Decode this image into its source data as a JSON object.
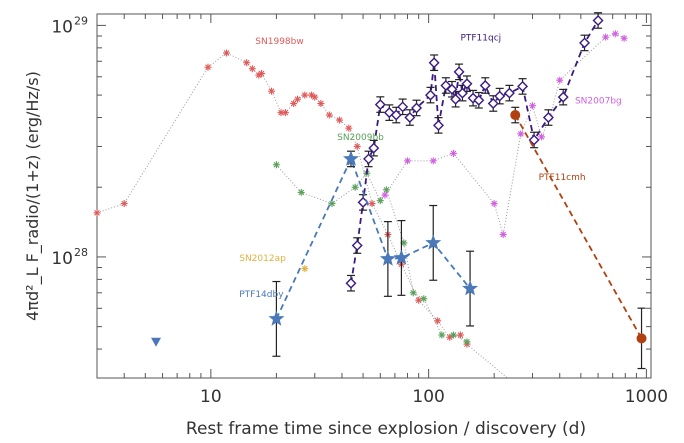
{
  "chart_data": {
    "type": "scatter",
    "xlabel": "Rest frame time since explosion / discovery (d)",
    "ylabel": "4πd²_L F_radio/(1+z) (erg/Hz/s)",
    "xscale": "log",
    "yscale": "log",
    "xlim": [
      3,
      1050
    ],
    "ylim": [
      3e+27,
      1.12e+29
    ],
    "x_ticks": [
      {
        "value": 10,
        "label": "10"
      },
      {
        "value": 100,
        "label": "100"
      },
      {
        "value": 1000,
        "label": "1000"
      }
    ],
    "y_ticks": [
      {
        "value": 1e+28,
        "label_base": "10",
        "label_exp": "28"
      },
      {
        "value": 1e+29,
        "label_base": "10",
        "label_exp": "29"
      }
    ],
    "grid": false,
    "series": [
      {
        "name": "SN1998bw",
        "color": "#e05a5a",
        "marker": "asterisk",
        "line": "dotted",
        "label_at": [
          16,
          8.3e+28
        ],
        "x": [
          3.0,
          4.0,
          9.7,
          11.8,
          14.6,
          15.5,
          16.6,
          17.1,
          19.0,
          21.0,
          22.0,
          24.0,
          25.0,
          27.0,
          29.0,
          30.0,
          32.0,
          35.0,
          39.0,
          43.0,
          47.0,
          55.0,
          65.0,
          75.0,
          90.0,
          110.0,
          125.0,
          140.0,
          150.0
        ],
        "y": [
          1.55e+28,
          1.7e+28,
          6.6e+28,
          7.6e+28,
          6.9e+28,
          6.5e+28,
          6.1e+28,
          6.2e+28,
          5.2e+28,
          4.2e+28,
          4.2e+28,
          4.6e+28,
          4.8e+28,
          5e+28,
          5e+28,
          4.9e+28,
          4.6e+28,
          4.1e+28,
          3.9e+28,
          3.6e+28,
          3e+28,
          1.7e+28,
          1.25e+28,
          9.3e+27,
          6.5e+27,
          5.3e+27,
          4.5e+27,
          4.6e+27,
          4.2e+27
        ]
      },
      {
        "name": "SN2009bb",
        "color": "#5aa05a",
        "marker": "asterisk",
        "line": "dotted",
        "label_at": [
          38,
          3.2e+28
        ],
        "x": [
          20.0,
          26.0,
          36.0,
          46.0,
          52.0,
          60.0,
          64.0,
          77.0,
          85.0,
          95.0,
          115.0,
          130.0,
          150.0
        ],
        "y": [
          2.5e+28,
          1.9e+28,
          1.7e+28,
          2e+28,
          2.3e+28,
          1.75e+28,
          1.95e+28,
          1.15e+28,
          7e+27,
          6.6e+27,
          4.6e+27,
          4.6e+27,
          4.3e+27
        ]
      },
      {
        "name": "SN2007bg",
        "color": "#d060e0",
        "marker": "asterisk",
        "line": "dotted",
        "label_at": [
          470,
          4.6e+28
        ],
        "x": [
          63.0,
          80.0,
          105.0,
          130.0,
          200.0,
          220.0,
          265.0,
          300.0,
          330.0,
          360.0,
          400.0,
          650.0,
          720.0,
          790.0
        ],
        "y": [
          1.85e+28,
          2.6e+28,
          2.6e+28,
          2.8e+28,
          1.7e+28,
          1.25e+28,
          3.4e+28,
          4.5e+28,
          3.3e+28,
          4e+28,
          5.8e+28,
          8.9e+28,
          9.2e+28,
          8.8e+28
        ]
      },
      {
        "name": "SN2012ap",
        "color": "#e0b040",
        "marker": "asterisk",
        "line": "none",
        "label_at": [
          13.5,
          9.6e+27
        ],
        "x": [
          27.0
        ],
        "y": [
          8.9e+27
        ]
      },
      {
        "name": "PTF11qcj",
        "color": "#3a1a80",
        "marker": "diamond",
        "line": "dashed",
        "label_at": [
          140,
          8.6e+28
        ],
        "x": [
          44.0,
          47.0,
          50.0,
          53.0,
          56.0,
          60.0,
          66.0,
          71.0,
          76.0,
          82.0,
          88.0,
          102.0,
          106.0,
          111.0,
          120.0,
          128.0,
          133.0,
          138.0,
          143.0,
          150.0,
          160.0,
          170.0,
          182.0,
          198.0,
          212.0,
          235.0,
          270.0,
          305.0,
          355.0,
          415.0,
          520.0,
          600.0
        ],
        "y": [
          7.7e+27,
          1.12e+28,
          1.72e+28,
          2.65e+28,
          2.95e+28,
          4.55e+28,
          4.2e+28,
          4.1e+28,
          4.45e+28,
          4e+28,
          4.4e+28,
          5e+28,
          6.9e+28,
          3.7e+28,
          5.5e+28,
          5.3e+28,
          4.8e+28,
          6.3e+28,
          5.1e+28,
          5.6e+28,
          4.85e+28,
          4.75e+28,
          5.5e+28,
          4.6e+28,
          4.95e+28,
          5.1e+28,
          5.45e+28,
          3.2e+28,
          4e+28,
          4.9e+28,
          8.4e+28,
          1.05e+29
        ]
      },
      {
        "name": "PTF11cmh",
        "color": "#b04010",
        "marker": "circle",
        "line": "dashed",
        "label_at": [
          320,
          2.15e+28
        ],
        "x": [
          250.0,
          950.0
        ],
        "y": [
          4.1e+28,
          4.45e+27
        ]
      },
      {
        "name": "PTF14dby",
        "color": "#4a78b8",
        "marker": "star",
        "line": "dashed",
        "label_at": [
          13.5,
          6.7e+27
        ],
        "x": [
          20.0,
          44.0,
          65.0,
          75.0,
          105.0,
          155.0
        ],
        "y": [
          5.4e+27,
          2.65e+28,
          9.8e+27,
          9.9e+27,
          1.15e+28,
          7.3e+27
        ]
      }
    ],
    "extra_markers": [
      {
        "x": 5.6,
        "y": 4.3e+27,
        "shape": "triangle-down",
        "color": "#4a78b8"
      }
    ],
    "gray_dotted_extension": {
      "x": [
        150,
        230
      ],
      "y": [
        4.2e+27,
        3e+27
      ]
    }
  }
}
